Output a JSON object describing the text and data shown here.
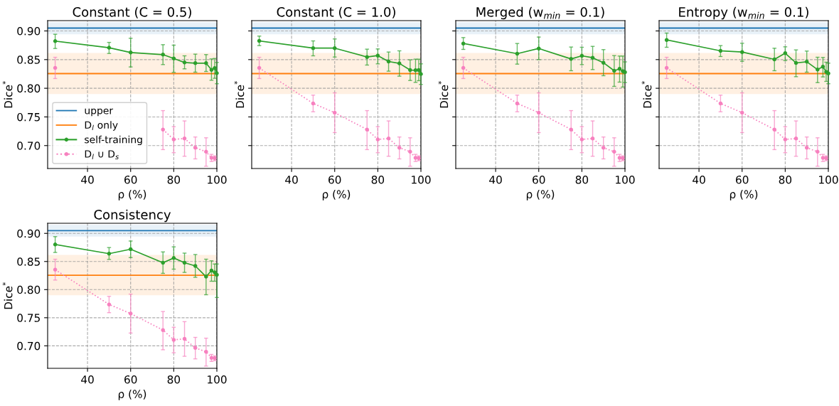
{
  "chart_data": [
    {
      "type": "line",
      "title": "Constant (C = 0.5)",
      "xlabel": "ρ (%)",
      "ylabel": "Dice$^{*}$",
      "xlim": [
        21.5,
        100
      ],
      "xticks": [
        40,
        60,
        80,
        100
      ],
      "ylim": [
        0.66,
        0.918
      ],
      "yticks": [
        {
          "value": 0.7,
          "label": "0.70"
        },
        {
          "value": 0.75,
          "label": "0.75"
        },
        {
          "value": 0.8,
          "label": "0.80"
        },
        {
          "value": 0.85,
          "label": "0.85"
        },
        {
          "value": 0.9,
          "label": "0.90"
        }
      ],
      "grid": true,
      "legend": "lower left",
      "x": [
        25,
        50,
        60,
        75,
        80,
        85,
        90,
        95,
        97.5,
        99,
        100
      ],
      "ref_lines": [
        {
          "axis": "y",
          "value": 0.905,
          "label": "upper",
          "color": "#1f77b4"
        },
        {
          "axis": "y",
          "value": 0.8256,
          "label": "D$_{l}$ only",
          "color": "#ff7f0e"
        }
      ],
      "bands": [
        {
          "axis": "y",
          "from": 0.8942,
          "to": 0.9153,
          "color": "#e8f1f8"
        },
        {
          "axis": "y",
          "from": 0.79,
          "to": 0.8616,
          "color": "#fff0e2"
        }
      ],
      "series": [
        {
          "name": "self-training",
          "color": "#2ca02c",
          "marker": "circle",
          "line_style": "solid",
          "values": [
            0.8822,
            0.8707,
            0.8624,
            0.8587,
            0.852,
            0.845,
            0.8438,
            0.8438,
            0.8322,
            0.8351,
            0.8264
          ],
          "errors": [
            [
              0.8694,
              0.8942
            ],
            [
              0.8607,
              0.88
            ],
            [
              0.8372,
              0.8872
            ],
            [
              0.8413,
              0.876
            ],
            [
              0.8277,
              0.8752
            ],
            [
              0.8339,
              0.8566
            ],
            [
              0.8281,
              0.8595
            ],
            [
              0.8293,
              0.8587
            ],
            [
              0.814,
              0.8512
            ],
            [
              0.8174,
              0.852
            ],
            [
              0.8079,
              0.845
            ]
          ]
        },
        {
          "name": "D$_{l}$ ∪ D$_{s}$",
          "color": "#f781bf",
          "marker": "circle",
          "line_style": "dotted",
          "values": [
            0.8355,
            null,
            null,
            0.728,
            0.7107,
            0.7124,
            0.6963,
            0.6893,
            0.6785,
            0.678,
            null
          ],
          "errors": [
            [
              0.817,
              0.854
            ],
            null,
            null,
            [
              0.693,
              0.761
            ],
            [
              0.6876,
              0.733
            ],
            [
              0.6814,
              0.743
            ],
            [
              0.6768,
              0.715
            ],
            [
              0.664,
              0.7136
            ],
            [
              0.6723,
              0.6847
            ],
            [
              0.6736,
              0.682
            ],
            null
          ]
        }
      ]
    },
    {
      "type": "line",
      "title": "Constant (C = 1.0)",
      "xlabel": "ρ (%)",
      "ylabel": "Dice$^{*}$",
      "xlim": [
        21.5,
        100
      ],
      "xticks": [
        40,
        60,
        80,
        100
      ],
      "ylim": [
        0.66,
        0.918
      ],
      "yticks": [
        {
          "value": 0.7,
          "label": null
        },
        {
          "value": 0.75,
          "label": null
        },
        {
          "value": 0.8,
          "label": null
        },
        {
          "value": 0.85,
          "label": null
        },
        {
          "value": 0.9,
          "label": null
        }
      ],
      "grid": true,
      "tick_labels": "x",
      "x": [
        25,
        50,
        60,
        75,
        80,
        85,
        90,
        95,
        97.5,
        99,
        100
      ],
      "ref_lines": [
        {
          "axis": "y",
          "value": 0.905,
          "color": "#1f77b4"
        },
        {
          "axis": "y",
          "value": 0.8256,
          "color": "#ff7f0e"
        }
      ],
      "bands": [
        {
          "axis": "y",
          "from": 0.8942,
          "to": 0.9153,
          "color": "#e8f1f8"
        },
        {
          "axis": "y",
          "from": 0.79,
          "to": 0.8616,
          "color": "#fff0e2"
        }
      ],
      "series": [
        {
          "color": "#2ca02c",
          "marker": "circle",
          "line_style": "solid",
          "values": [
            0.8826,
            0.87,
            0.87,
            0.8545,
            0.857,
            0.8467,
            0.8434,
            0.8318,
            0.8314,
            0.8318,
            0.8248
          ],
          "errors": [
            [
              0.8744,
              0.891
            ],
            [
              0.8566,
              0.8826
            ],
            [
              0.8545,
              0.886
            ],
            [
              0.8405,
              0.8682
            ],
            [
              0.8426,
              0.8686
            ],
            [
              0.8298,
              0.8632
            ],
            [
              0.8211,
              0.8653
            ],
            [
              0.8136,
              0.8496
            ],
            [
              0.8103,
              0.8508
            ],
            [
              0.8132,
              0.8508
            ],
            [
              0.8066,
              0.8426
            ]
          ]
        },
        {
          "color": "#f781bf",
          "marker": "circle",
          "line_style": "dotted",
          "values": [
            0.8355,
            0.7736,
            0.7574,
            0.728,
            0.7107,
            0.7124,
            0.6963,
            0.6893,
            0.6785,
            0.678,
            null
          ],
          "errors": [
            [
              0.817,
              0.854
            ],
            [
              0.759,
              0.788
            ],
            [
              0.7227,
              0.792
            ],
            [
              0.693,
              0.761
            ],
            [
              0.6876,
              0.733
            ],
            [
              0.6814,
              0.743
            ],
            [
              0.6768,
              0.715
            ],
            [
              0.664,
              0.7136
            ],
            [
              0.6723,
              0.6847
            ],
            [
              0.6736,
              0.682
            ],
            null
          ]
        }
      ]
    },
    {
      "type": "line",
      "title": "Merged (w$_{min}$ = 0.1)",
      "xlabel": "ρ (%)",
      "ylabel": "Dice$^{*}$",
      "xlim": [
        21.5,
        100
      ],
      "xticks": [
        40,
        60,
        80,
        100
      ],
      "ylim": [
        0.66,
        0.918
      ],
      "yticks": [
        {
          "value": 0.7,
          "label": null
        },
        {
          "value": 0.75,
          "label": null
        },
        {
          "value": 0.8,
          "label": null
        },
        {
          "value": 0.85,
          "label": null
        },
        {
          "value": 0.9,
          "label": null
        }
      ],
      "grid": true,
      "tick_labels": "x",
      "x": [
        25,
        50,
        60,
        75,
        80,
        85,
        90,
        95,
        97.5,
        99,
        100
      ],
      "ref_lines": [
        {
          "axis": "y",
          "value": 0.905,
          "color": "#1f77b4"
        },
        {
          "axis": "y",
          "value": 0.8256,
          "color": "#ff7f0e"
        }
      ],
      "bands": [
        {
          "axis": "y",
          "from": 0.8942,
          "to": 0.9153,
          "color": "#e8f1f8"
        },
        {
          "axis": "y",
          "from": 0.79,
          "to": 0.8616,
          "color": "#fff0e2"
        }
      ],
      "series": [
        {
          "color": "#2ca02c",
          "marker": "circle",
          "line_style": "solid",
          "values": [
            0.8781,
            0.8603,
            0.8694,
            0.8512,
            0.8566,
            0.8533,
            0.8446,
            0.8306,
            0.8339,
            0.8298,
            0.828
          ],
          "errors": [
            [
              0.8678,
              0.8884
            ],
            [
              0.8421,
              0.8781
            ],
            [
              0.85,
              0.8893
            ],
            [
              0.8306,
              0.8719
            ],
            [
              0.8413,
              0.8715
            ],
            [
              0.8326,
              0.8731
            ],
            [
              0.8219,
              0.8674
            ],
            [
              0.8033,
              0.857
            ],
            [
              0.8107,
              0.8562
            ],
            [
              0.8021,
              0.8562
            ],
            [
              0.81,
              0.846
            ]
          ]
        },
        {
          "color": "#f781bf",
          "marker": "circle",
          "line_style": "dotted",
          "values": [
            0.8355,
            0.7736,
            0.7574,
            0.728,
            0.7107,
            0.7124,
            0.6963,
            0.6893,
            0.6785,
            0.678,
            null
          ],
          "errors": [
            [
              0.817,
              0.854
            ],
            [
              0.759,
              0.788
            ],
            [
              0.7227,
              0.792
            ],
            [
              0.693,
              0.761
            ],
            [
              0.6876,
              0.733
            ],
            [
              0.6814,
              0.743
            ],
            [
              0.6768,
              0.715
            ],
            [
              0.664,
              0.7136
            ],
            [
              0.6723,
              0.6847
            ],
            [
              0.6736,
              0.682
            ],
            null
          ]
        }
      ]
    },
    {
      "type": "line",
      "title": "Entropy (w$_{min}$ = 0.1)",
      "xlabel": "ρ (%)",
      "ylabel": "Dice$^{*}$",
      "xlim": [
        21.5,
        100
      ],
      "xticks": [
        40,
        60,
        80,
        100
      ],
      "ylim": [
        0.66,
        0.918
      ],
      "yticks": [
        {
          "value": 0.7,
          "label": null
        },
        {
          "value": 0.75,
          "label": null
        },
        {
          "value": 0.8,
          "label": null
        },
        {
          "value": 0.85,
          "label": null
        },
        {
          "value": 0.9,
          "label": null
        }
      ],
      "grid": true,
      "tick_labels": "x",
      "x": [
        25,
        50,
        60,
        75,
        80,
        85,
        90,
        95,
        97.5,
        99,
        100
      ],
      "ref_lines": [
        {
          "axis": "y",
          "value": 0.905,
          "color": "#1f77b4"
        },
        {
          "axis": "y",
          "value": 0.8256,
          "color": "#ff7f0e"
        }
      ],
      "bands": [
        {
          "axis": "y",
          "from": 0.8942,
          "to": 0.9153,
          "color": "#e8f1f8"
        },
        {
          "axis": "y",
          "from": 0.79,
          "to": 0.8616,
          "color": "#fff0e2"
        }
      ],
      "series": [
        {
          "color": "#2ca02c",
          "marker": "circle",
          "line_style": "solid",
          "values": [
            0.8843,
            0.8653,
            0.8632,
            0.8504,
            0.8612,
            0.8442,
            0.8463,
            0.8326,
            0.8376,
            0.8285,
            0.826
          ],
          "errors": [
            [
              0.8715,
              0.8963
            ],
            [
              0.8554,
              0.8744
            ],
            [
              0.8471,
              0.8785
            ],
            [
              0.8306,
              0.8698
            ],
            [
              0.8483,
              0.8723
            ],
            [
              0.8202,
              0.8669
            ],
            [
              0.8281,
              0.8649
            ],
            [
              0.8099,
              0.8541
            ],
            [
              0.8198,
              0.8537
            ],
            [
              0.812,
              0.8455
            ],
            [
              0.8079,
              0.8438
            ]
          ]
        },
        {
          "color": "#f781bf",
          "marker": "circle",
          "line_style": "dotted",
          "values": [
            0.8355,
            0.7736,
            0.7574,
            0.728,
            0.7107,
            0.7124,
            0.6963,
            0.6893,
            0.6785,
            0.678,
            null
          ],
          "errors": [
            [
              0.817,
              0.854
            ],
            [
              0.759,
              0.788
            ],
            [
              0.7227,
              0.792
            ],
            [
              0.693,
              0.761
            ],
            [
              0.6876,
              0.733
            ],
            [
              0.6814,
              0.743
            ],
            [
              0.6768,
              0.715
            ],
            [
              0.664,
              0.7136
            ],
            [
              0.6723,
              0.6847
            ],
            [
              0.6736,
              0.682
            ],
            null
          ]
        }
      ]
    },
    {
      "type": "line",
      "title": "Consistency",
      "xlabel": "ρ (%)",
      "ylabel": "Dice$^{*}$",
      "xlim": [
        21.5,
        100
      ],
      "xticks": [
        40,
        60,
        80,
        100
      ],
      "ylim": [
        0.66,
        0.918
      ],
      "yticks": [
        {
          "value": 0.7,
          "label": "0.70"
        },
        {
          "value": 0.75,
          "label": "0.75"
        },
        {
          "value": 0.8,
          "label": "0.80"
        },
        {
          "value": 0.85,
          "label": "0.85"
        },
        {
          "value": 0.9,
          "label": "0.90"
        }
      ],
      "grid": true,
      "x": [
        25,
        50,
        60,
        75,
        80,
        85,
        90,
        95,
        97.5,
        99,
        100
      ],
      "ref_lines": [
        {
          "axis": "y",
          "value": 0.905,
          "color": "#1f77b4"
        },
        {
          "axis": "y",
          "value": 0.8256,
          "color": "#ff7f0e"
        }
      ],
      "bands": [
        {
          "axis": "y",
          "from": 0.8942,
          "to": 0.9153,
          "color": "#e8f1f8"
        },
        {
          "axis": "y",
          "from": 0.79,
          "to": 0.8616,
          "color": "#fff0e2"
        }
      ],
      "series": [
        {
          "color": "#2ca02c",
          "marker": "circle",
          "line_style": "solid",
          "values": [
            0.8802,
            0.864,
            0.8719,
            0.8479,
            0.8562,
            0.8479,
            0.8421,
            0.8231,
            0.8339,
            0.8306,
            0.8264
          ],
          "errors": [
            [
              0.8661,
              0.8942
            ],
            [
              0.8537,
              0.8748
            ],
            [
              0.857,
              0.8864
            ],
            [
              0.8289,
              0.867
            ],
            [
              0.8364,
              0.876
            ],
            [
              0.8306,
              0.8649
            ],
            [
              0.8219,
              0.8624
            ],
            [
              0.7909,
              0.8541
            ],
            [
              0.8149,
              0.8512
            ],
            [
              0.8149,
              0.8455
            ],
            [
              0.786,
              0.8455
            ]
          ]
        },
        {
          "color": "#f781bf",
          "marker": "circle",
          "line_style": "dotted",
          "values": [
            0.8355,
            0.7736,
            0.7574,
            0.728,
            0.7107,
            0.7124,
            0.6963,
            0.6893,
            0.6785,
            0.678,
            null
          ],
          "errors": [
            [
              0.817,
              0.854
            ],
            [
              0.759,
              0.788
            ],
            [
              0.7227,
              0.792
            ],
            [
              0.693,
              0.761
            ],
            [
              0.6876,
              0.733
            ],
            [
              0.6814,
              0.743
            ],
            [
              0.6768,
              0.715
            ],
            [
              0.664,
              0.7136
            ],
            [
              0.6723,
              0.6847
            ],
            [
              0.6736,
              0.682
            ],
            null
          ]
        }
      ]
    }
  ]
}
